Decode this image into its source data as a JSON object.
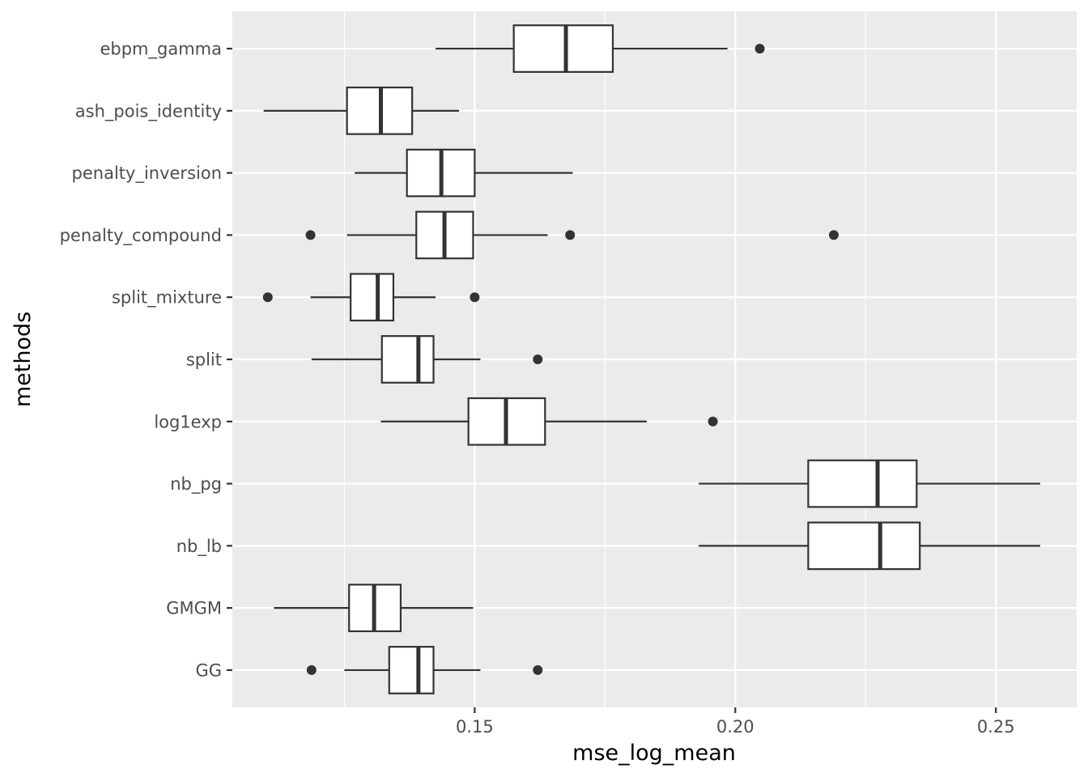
{
  "chart_data": {
    "type": "boxplot",
    "orientation": "horizontal",
    "xlabel": "mse_log_mean",
    "ylabel": "methods",
    "xlim": [
      0.1035,
      0.2655
    ],
    "xticks": [
      0.15,
      0.2,
      0.25
    ],
    "xtick_labels": [
      "0.15",
      "0.20",
      "0.25"
    ],
    "grid": true,
    "categories": [
      "ebpm_gamma",
      "ash_pois_identity",
      "penalty_inversion",
      "penalty_compound",
      "split_mixture",
      "split",
      "log1exp",
      "nb_pg",
      "nb_lb",
      "GMGM",
      "GG"
    ],
    "boxes": [
      {
        "label": "ebpm_gamma",
        "whisker_low": 0.1425,
        "q1": 0.1575,
        "median": 0.1675,
        "q3": 0.1765,
        "whisker_high": 0.1985,
        "outliers": [
          0.2047
        ]
      },
      {
        "label": "ash_pois_identity",
        "whisker_low": 0.1095,
        "q1": 0.1255,
        "median": 0.132,
        "q3": 0.138,
        "whisker_high": 0.147,
        "outliers": []
      },
      {
        "label": "penalty_inversion",
        "whisker_low": 0.127,
        "q1": 0.137,
        "median": 0.1436,
        "q3": 0.15,
        "whisker_high": 0.1688,
        "outliers": []
      },
      {
        "label": "penalty_compound",
        "whisker_low": 0.1255,
        "q1": 0.1388,
        "median": 0.1442,
        "q3": 0.1497,
        "whisker_high": 0.164,
        "outliers": [
          0.1185,
          0.1683,
          0.2189
        ]
      },
      {
        "label": "split_mixture",
        "whisker_low": 0.1185,
        "q1": 0.1262,
        "median": 0.1314,
        "q3": 0.1344,
        "whisker_high": 0.1425,
        "outliers": [
          0.1103,
          0.15
        ]
      },
      {
        "label": "split",
        "whisker_low": 0.1187,
        "q1": 0.1322,
        "median": 0.1392,
        "q3": 0.1421,
        "whisker_high": 0.1511,
        "outliers": [
          0.1621
        ]
      },
      {
        "label": "log1exp",
        "whisker_low": 0.132,
        "q1": 0.1488,
        "median": 0.156,
        "q3": 0.1635,
        "whisker_high": 0.183,
        "outliers": [
          0.1957
        ]
      },
      {
        "label": "nb_pg",
        "whisker_low": 0.193,
        "q1": 0.214,
        "median": 0.2273,
        "q3": 0.2348,
        "whisker_high": 0.2585,
        "outliers": []
      },
      {
        "label": "nb_lb",
        "whisker_low": 0.193,
        "q1": 0.214,
        "median": 0.2278,
        "q3": 0.2354,
        "whisker_high": 0.2585,
        "outliers": []
      },
      {
        "label": "GMGM",
        "whisker_low": 0.1115,
        "q1": 0.1259,
        "median": 0.1307,
        "q3": 0.1358,
        "whisker_high": 0.1497,
        "outliers": []
      },
      {
        "label": "GG",
        "whisker_low": 0.125,
        "q1": 0.1336,
        "median": 0.1392,
        "q3": 0.1421,
        "whisker_high": 0.1511,
        "outliers": [
          0.1187,
          0.1621
        ]
      }
    ],
    "colors": {
      "panel_background": "#ebebeb",
      "grid": "#ffffff",
      "box_fill": "#ffffff",
      "box_stroke": "#333333",
      "outlier": "#333333",
      "tick_label": "#4d4d4d"
    }
  }
}
